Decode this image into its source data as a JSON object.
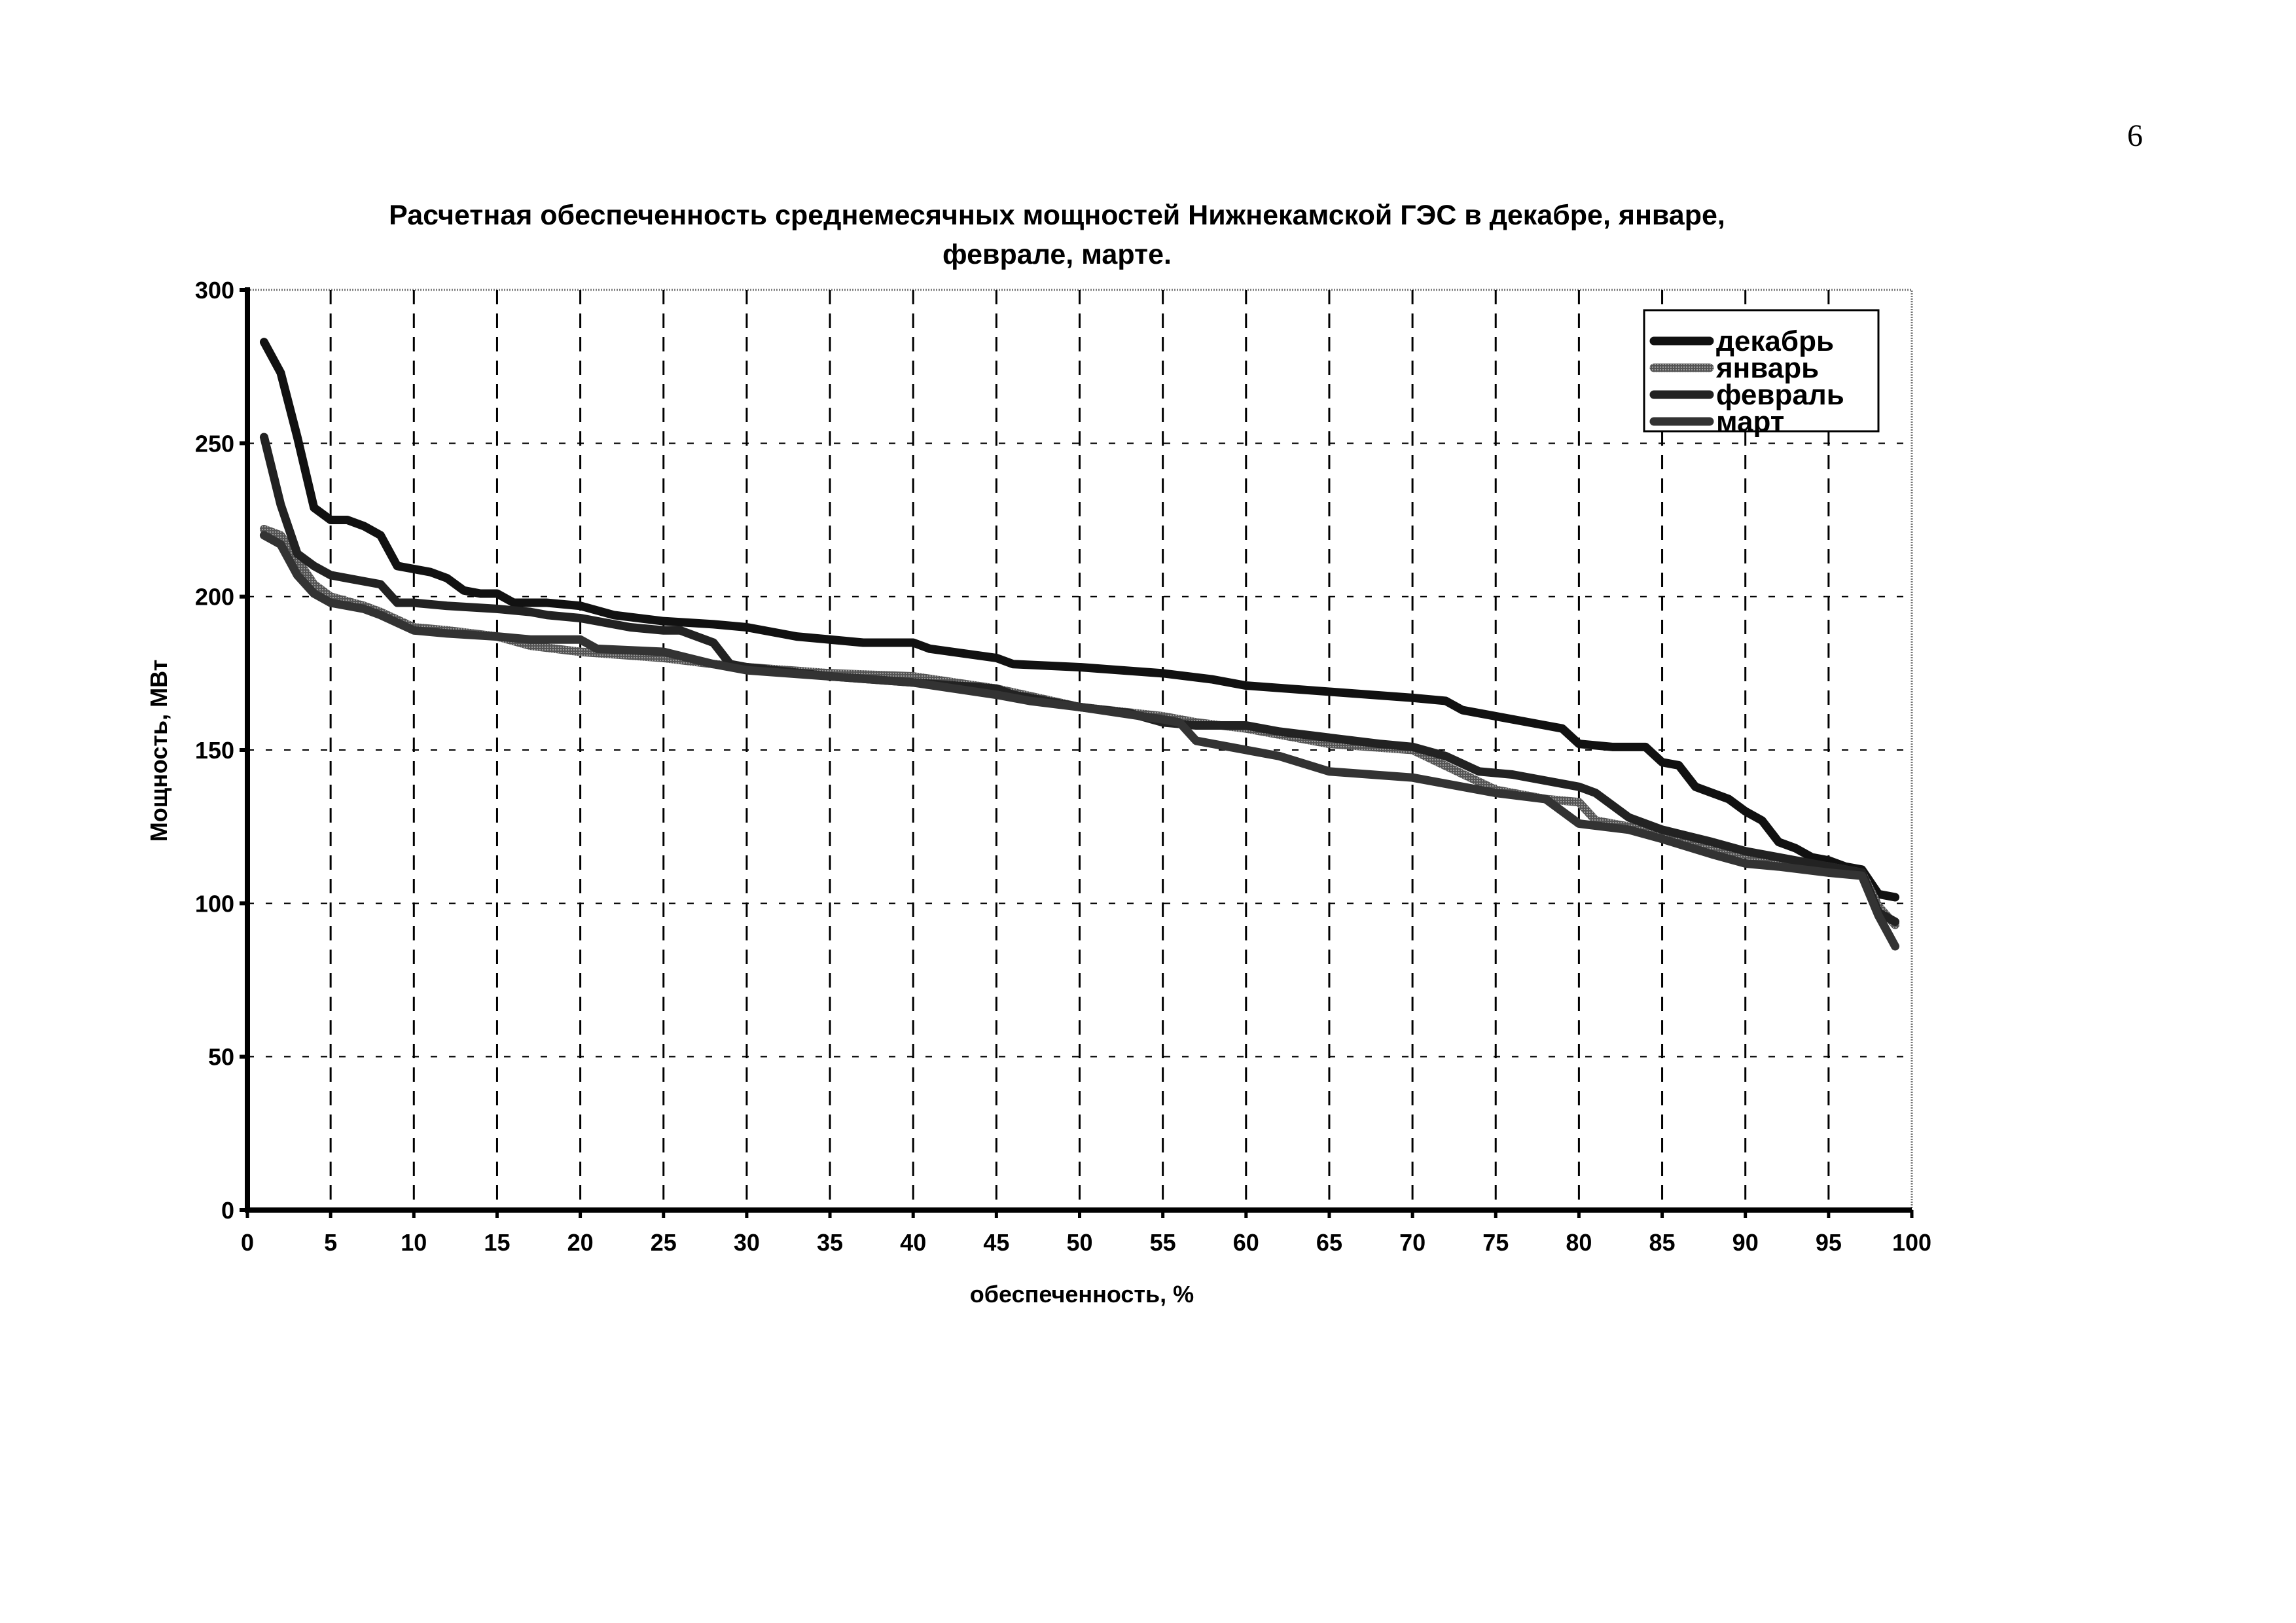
{
  "page_number": "6",
  "chart_data": {
    "type": "line",
    "title_line1": "Расчетная обеспеченность среднемесячных мощностей Нижнекамской ГЭС в декабре, январе,",
    "title_line2": "феврале, марте.",
    "xlabel": "обеспеченность, %",
    "ylabel": "Мощность, МВт",
    "xlim": [
      0,
      100
    ],
    "ylim": [
      0,
      300
    ],
    "xticks": [
      "0",
      "5",
      "10",
      "15",
      "20",
      "25",
      "30",
      "35",
      "40",
      "45",
      "50",
      "55",
      "60",
      "65",
      "70",
      "75",
      "80",
      "85",
      "90",
      "95",
      "100"
    ],
    "yticks": [
      "0",
      "50",
      "100",
      "150",
      "200",
      "250",
      "300"
    ],
    "grid": true,
    "legend_position": "top-right",
    "series": [
      {
        "name": "декабрь",
        "color": "#111111",
        "x": [
          1,
          2,
          3,
          4,
          5,
          6,
          7,
          8,
          9,
          10,
          11,
          12,
          13,
          14,
          15,
          16,
          18,
          20,
          22,
          25,
          28,
          30,
          32,
          33,
          35,
          37,
          40,
          41,
          45,
          46,
          50,
          55,
          58,
          60,
          65,
          70,
          72,
          73,
          75,
          78,
          79,
          80,
          82,
          84,
          85,
          86,
          87,
          89,
          90,
          91,
          92,
          93,
          94,
          95,
          96,
          97,
          98,
          99
        ],
        "y": [
          283,
          273,
          252,
          229,
          225,
          225,
          223,
          220,
          210,
          209,
          208,
          206,
          202,
          201,
          201,
          198,
          198,
          197,
          194,
          192,
          191,
          190,
          188,
          187,
          186,
          185,
          185,
          183,
          180,
          178,
          177,
          175,
          173,
          171,
          169,
          167,
          166,
          163,
          161,
          158,
          157,
          152,
          151,
          151,
          146,
          145,
          138,
          134,
          130,
          127,
          120,
          118,
          115,
          114,
          112,
          111,
          103,
          102
        ]
      },
      {
        "name": "январь",
        "color": "#666666",
        "x": [
          1,
          2,
          3,
          4,
          5,
          7,
          8,
          10,
          12,
          15,
          17,
          20,
          25,
          28,
          30,
          35,
          40,
          45,
          50,
          55,
          57,
          60,
          65,
          70,
          75,
          78,
          80,
          81,
          83,
          85,
          88,
          90,
          92,
          95,
          97,
          98,
          99
        ],
        "y": [
          222,
          220,
          212,
          204,
          200,
          197,
          195,
          190,
          189,
          187,
          184,
          182,
          180,
          178,
          177,
          175,
          174,
          170,
          164,
          161,
          159,
          157,
          152,
          150,
          137,
          134,
          133,
          127,
          125,
          122,
          118,
          116,
          114,
          112,
          110,
          99,
          93
        ]
      },
      {
        "name": "февраль",
        "color": "#222222",
        "x": [
          1,
          2,
          3,
          4,
          5,
          6,
          7,
          8,
          9,
          10,
          12,
          15,
          17,
          18,
          20,
          21,
          23,
          25,
          26,
          27,
          28,
          29,
          30,
          35,
          40,
          45,
          46,
          50,
          53,
          55,
          57,
          60,
          62,
          65,
          68,
          70,
          72,
          74,
          76,
          78,
          80,
          81,
          82,
          83,
          85,
          88,
          90,
          92,
          94,
          96,
          97,
          98,
          99
        ],
        "y": [
          252,
          230,
          214,
          210,
          207,
          206,
          205,
          204,
          198,
          198,
          197,
          196,
          195,
          194,
          193,
          192,
          190,
          189,
          189,
          187,
          185,
          178,
          177,
          174,
          172,
          170,
          168,
          164,
          162,
          159,
          158,
          158,
          156,
          154,
          152,
          151,
          148,
          143,
          142,
          140,
          138,
          136,
          132,
          128,
          124,
          120,
          117,
          115,
          113,
          111,
          110,
          97,
          94
        ]
      },
      {
        "name": "март",
        "color": "#333333",
        "x": [
          1,
          2,
          3,
          4,
          5,
          7,
          8,
          10,
          12,
          15,
          17,
          20,
          21,
          25,
          28,
          30,
          35,
          40,
          45,
          47,
          50,
          55,
          56,
          57,
          60,
          62,
          65,
          70,
          75,
          78,
          80,
          83,
          85,
          88,
          90,
          92,
          95,
          97,
          98,
          99
        ],
        "y": [
          220,
          217,
          207,
          201,
          198,
          196,
          194,
          189,
          188,
          187,
          186,
          186,
          183,
          182,
          178,
          176,
          174,
          172,
          168,
          166,
          164,
          160,
          159,
          153,
          150,
          148,
          143,
          141,
          136,
          134,
          126,
          124,
          121,
          116,
          113,
          112,
          110,
          109,
          96,
          86
        ]
      }
    ]
  }
}
